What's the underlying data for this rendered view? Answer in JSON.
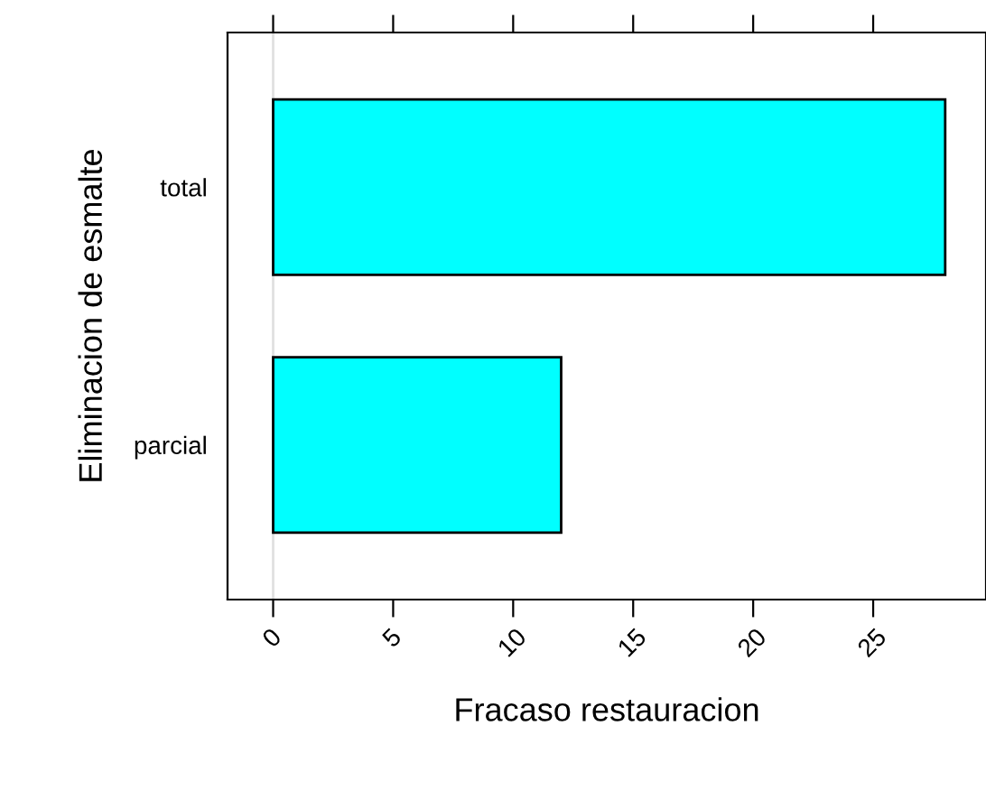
{
  "chart_data": {
    "type": "bar",
    "orientation": "horizontal",
    "xlabel": "Fracaso restauracion",
    "ylabel": "Eliminacion de esmalte",
    "categories": [
      "total",
      "parcial"
    ],
    "values": [
      28,
      12
    ],
    "color": "#00ffff",
    "xlim": [
      -1.9,
      29.7
    ],
    "xticks": [
      0,
      5,
      10,
      15,
      20,
      25
    ],
    "ref_lines": [
      {
        "axis": "x",
        "value": 0,
        "color": "#e0e0e0"
      }
    ],
    "grid": false,
    "legend": false
  }
}
